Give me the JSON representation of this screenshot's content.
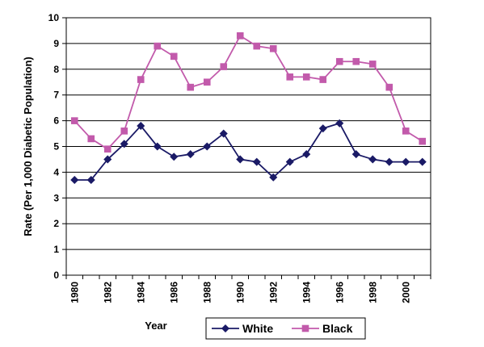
{
  "chart_data": {
    "type": "line",
    "title": "",
    "xlabel": "Year",
    "ylabel": "Rate (Per 1,000 Diabetic Population)",
    "ylim": [
      0,
      10
    ],
    "yticks": [
      0,
      1,
      2,
      3,
      4,
      5,
      6,
      7,
      8,
      9,
      10
    ],
    "x": [
      1980,
      1981,
      1982,
      1983,
      1984,
      1985,
      1986,
      1987,
      1988,
      1989,
      1990,
      1991,
      1992,
      1993,
      1994,
      1995,
      1996,
      1997,
      1998,
      1999,
      2000,
      2001
    ],
    "xticks": [
      1980,
      1982,
      1984,
      1986,
      1988,
      1990,
      1992,
      1994,
      1996,
      1998,
      2000
    ],
    "grid": "horizontal",
    "legend_position": "bottom",
    "series": [
      {
        "name": "White",
        "color": "#1a1a66",
        "marker": "diamond",
        "values": [
          3.7,
          3.7,
          4.5,
          5.1,
          5.8,
          5.0,
          4.6,
          4.7,
          5.0,
          5.5,
          4.5,
          4.4,
          3.8,
          4.4,
          4.7,
          5.7,
          5.9,
          4.7,
          4.5,
          4.4,
          4.4,
          4.4
        ]
      },
      {
        "name": "Black",
        "color": "#c25aab",
        "marker": "square",
        "values": [
          6.0,
          5.3,
          4.9,
          5.6,
          7.6,
          8.9,
          8.5,
          7.3,
          7.5,
          8.1,
          9.3,
          8.9,
          8.8,
          7.7,
          7.7,
          7.6,
          8.3,
          8.3,
          8.2,
          7.3,
          5.6,
          5.2
        ]
      }
    ]
  }
}
